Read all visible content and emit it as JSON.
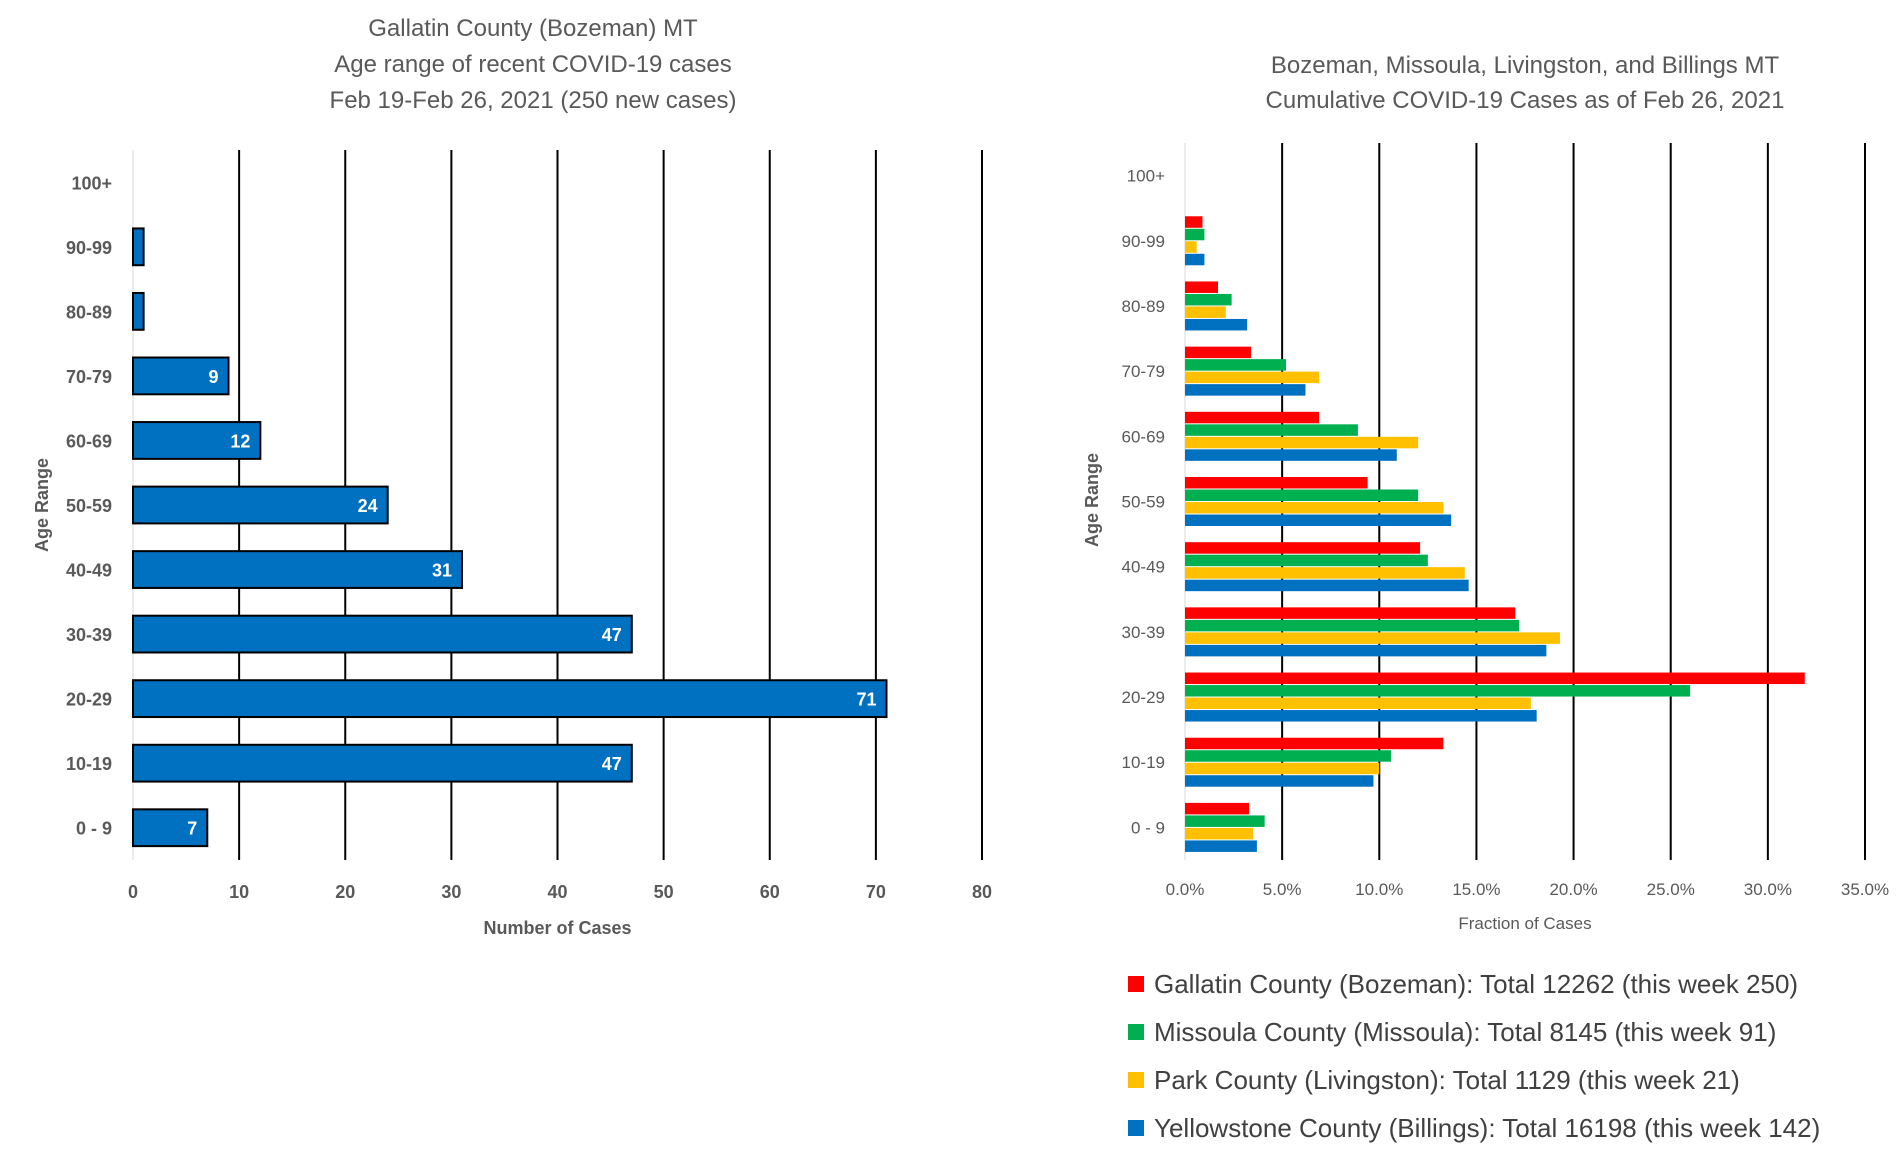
{
  "chart_data": [
    {
      "type": "bar",
      "orientation": "horizontal",
      "title": [
        "Gallatin County (Bozeman) MT",
        "Age range of recent COVID-19 cases",
        "Feb 19-Feb 26, 2021 (250 new cases)"
      ],
      "xlabel": "Number of Cases",
      "ylabel": "Age Range",
      "categories": [
        "0 - 9",
        "10-19",
        "20-29",
        "30-39",
        "40-49",
        "50-59",
        "60-69",
        "70-79",
        "80-89",
        "90-99",
        "100+"
      ],
      "values": [
        7,
        47,
        71,
        47,
        31,
        24,
        12,
        9,
        1,
        1,
        0
      ],
      "data_labels": [
        "7",
        "47",
        "71",
        "47",
        "31",
        "24",
        "12",
        "9",
        "",
        "",
        ""
      ],
      "xlim": [
        0,
        80
      ],
      "xticks": [
        0,
        10,
        20,
        30,
        40,
        50,
        60,
        70,
        80
      ],
      "xtick_labels": [
        "0",
        "10",
        "20",
        "30",
        "40",
        "50",
        "60",
        "70",
        "80"
      ],
      "grid": "vertical",
      "color": "#0070C0"
    },
    {
      "type": "bar",
      "orientation": "horizontal",
      "title": [
        "Bozeman, Missoula, Livingston, and Billings MT",
        "Cumulative COVID-19 Cases as of Feb 26, 2021"
      ],
      "xlabel": "Fraction of Cases",
      "ylabel": "Age Range",
      "categories": [
        "0 - 9",
        "10-19",
        "20-29",
        "30-39",
        "40-49",
        "50-59",
        "60-69",
        "70-79",
        "80-89",
        "90-99",
        "100+"
      ],
      "xlim": [
        0,
        35
      ],
      "xticks": [
        0,
        5,
        10,
        15,
        20,
        25,
        30,
        35
      ],
      "xtick_labels": [
        "0.0%",
        "5.0%",
        "10.0%",
        "15.0%",
        "20.0%",
        "25.0%",
        "30.0%",
        "35.0%"
      ],
      "grid": "vertical",
      "legend_position": "bottom",
      "series": [
        {
          "name": "Gallatin County (Bozeman): Total 12262 (this week 250)",
          "color": "#FF0000",
          "values": [
            3.3,
            13.3,
            31.9,
            17.0,
            12.1,
            9.4,
            6.9,
            3.4,
            1.7,
            0.9,
            0.0
          ]
        },
        {
          "name": "Missoula County (Missoula): Total 8145 (this week 91)",
          "color": "#00B050",
          "values": [
            4.1,
            10.6,
            26.0,
            17.2,
            12.5,
            12.0,
            8.9,
            5.2,
            2.4,
            1.0,
            0.0
          ]
        },
        {
          "name": "Park County (Livingston): Total 1129 (this week 21)",
          "color": "#FFC000",
          "values": [
            3.5,
            10.0,
            17.8,
            19.3,
            14.4,
            13.3,
            12.0,
            6.9,
            2.1,
            0.6,
            0.0
          ]
        },
        {
          "name": "Yellowstone County (Billings): Total 16198 (this week 142)",
          "color": "#0070C0",
          "values": [
            3.7,
            9.7,
            18.1,
            18.6,
            14.6,
            13.7,
            10.9,
            6.2,
            3.2,
            1.0,
            0.0
          ]
        }
      ]
    }
  ]
}
